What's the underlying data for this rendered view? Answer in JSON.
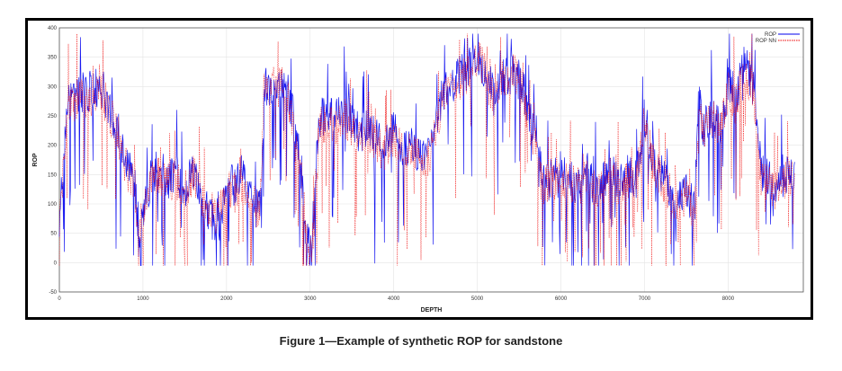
{
  "caption": "Figure 1—Example of synthetic ROP for sandstone",
  "chart_data": {
    "type": "line",
    "xlabel": "DEPTH",
    "ylabel": "ROP",
    "xlim": [
      0,
      8900
    ],
    "ylim": [
      -50,
      400
    ],
    "x_ticks": [
      0,
      1000,
      2000,
      3000,
      4000,
      5000,
      6000,
      7000,
      8000
    ],
    "y_ticks": [
      -50,
      0,
      50,
      100,
      150,
      200,
      250,
      300,
      350,
      400
    ],
    "grid": true,
    "legend_position": "top-right",
    "series": [
      {
        "name": "ROP",
        "color": "#0000ee",
        "profile": [
          [
            0,
            60
          ],
          [
            100,
            280
          ],
          [
            300,
            290
          ],
          [
            500,
            300
          ],
          [
            700,
            230
          ],
          [
            800,
            170
          ],
          [
            900,
            140
          ],
          [
            950,
            40
          ],
          [
            1000,
            80
          ],
          [
            1100,
            150
          ],
          [
            1200,
            160
          ],
          [
            1300,
            140
          ],
          [
            1400,
            150
          ],
          [
            1500,
            120
          ],
          [
            1600,
            160
          ],
          [
            1700,
            100
          ],
          [
            1800,
            80
          ],
          [
            1900,
            60
          ],
          [
            2000,
            140
          ],
          [
            2100,
            130
          ],
          [
            2200,
            160
          ],
          [
            2300,
            100
          ],
          [
            2400,
            90
          ],
          [
            2450,
            300
          ],
          [
            2550,
            300
          ],
          [
            2700,
            310
          ],
          [
            2800,
            250
          ],
          [
            2900,
            150
          ],
          [
            2950,
            50
          ],
          [
            3000,
            20
          ],
          [
            3050,
            100
          ],
          [
            3100,
            240
          ],
          [
            3200,
            260
          ],
          [
            3300,
            250
          ],
          [
            3400,
            260
          ],
          [
            3500,
            240
          ],
          [
            3600,
            220
          ],
          [
            3700,
            230
          ],
          [
            3800,
            210
          ],
          [
            3900,
            200
          ],
          [
            4000,
            230
          ],
          [
            4100,
            190
          ],
          [
            4200,
            200
          ],
          [
            4300,
            180
          ],
          [
            4400,
            170
          ],
          [
            4500,
            240
          ],
          [
            4600,
            290
          ],
          [
            4700,
            300
          ],
          [
            4800,
            320
          ],
          [
            4900,
            330
          ],
          [
            5000,
            350
          ],
          [
            5100,
            330
          ],
          [
            5200,
            280
          ],
          [
            5300,
            320
          ],
          [
            5400,
            320
          ],
          [
            5500,
            330
          ],
          [
            5600,
            260
          ],
          [
            5700,
            220
          ],
          [
            5800,
            130
          ],
          [
            5900,
            150
          ],
          [
            6000,
            140
          ],
          [
            6100,
            150
          ],
          [
            6200,
            130
          ],
          [
            6300,
            150
          ],
          [
            6400,
            130
          ],
          [
            6500,
            140
          ],
          [
            6600,
            150
          ],
          [
            6700,
            130
          ],
          [
            6800,
            150
          ],
          [
            6900,
            140
          ],
          [
            7000,
            250
          ],
          [
            7100,
            180
          ],
          [
            7200,
            150
          ],
          [
            7300,
            130
          ],
          [
            7400,
            100
          ],
          [
            7500,
            120
          ],
          [
            7600,
            90
          ],
          [
            7650,
            290
          ],
          [
            7700,
            220
          ],
          [
            7800,
            260
          ],
          [
            7900,
            230
          ],
          [
            8000,
            300
          ],
          [
            8100,
            290
          ],
          [
            8200,
            340
          ],
          [
            8300,
            300
          ],
          [
            8400,
            150
          ],
          [
            8500,
            140
          ],
          [
            8600,
            130
          ],
          [
            8700,
            150
          ],
          [
            8800,
            150
          ]
        ]
      },
      {
        "name": "ROP NN",
        "color": "#ee0000",
        "profile": [
          [
            0,
            70
          ],
          [
            100,
            270
          ],
          [
            300,
            280
          ],
          [
            500,
            290
          ],
          [
            700,
            220
          ],
          [
            800,
            160
          ],
          [
            900,
            140
          ],
          [
            950,
            50
          ],
          [
            1000,
            90
          ],
          [
            1100,
            140
          ],
          [
            1200,
            150
          ],
          [
            1300,
            140
          ],
          [
            1400,
            140
          ],
          [
            1500,
            120
          ],
          [
            1600,
            150
          ],
          [
            1700,
            110
          ],
          [
            1800,
            90
          ],
          [
            1900,
            80
          ],
          [
            2000,
            120
          ],
          [
            2100,
            120
          ],
          [
            2200,
            140
          ],
          [
            2300,
            100
          ],
          [
            2400,
            90
          ],
          [
            2450,
            300
          ],
          [
            2550,
            300
          ],
          [
            2700,
            300
          ],
          [
            2800,
            240
          ],
          [
            2900,
            150
          ],
          [
            2950,
            60
          ],
          [
            3000,
            0
          ],
          [
            3050,
            80
          ],
          [
            3100,
            230
          ],
          [
            3200,
            240
          ],
          [
            3300,
            230
          ],
          [
            3400,
            250
          ],
          [
            3500,
            230
          ],
          [
            3600,
            210
          ],
          [
            3700,
            220
          ],
          [
            3800,
            200
          ],
          [
            3900,
            190
          ],
          [
            4000,
            210
          ],
          [
            4100,
            190
          ],
          [
            4200,
            190
          ],
          [
            4300,
            180
          ],
          [
            4400,
            170
          ],
          [
            4500,
            220
          ],
          [
            4600,
            280
          ],
          [
            4700,
            290
          ],
          [
            4800,
            310
          ],
          [
            4900,
            320
          ],
          [
            5000,
            350
          ],
          [
            5100,
            320
          ],
          [
            5200,
            270
          ],
          [
            5300,
            320
          ],
          [
            5400,
            320
          ],
          [
            5500,
            320
          ],
          [
            5600,
            250
          ],
          [
            5700,
            200
          ],
          [
            5800,
            130
          ],
          [
            5900,
            140
          ],
          [
            6000,
            130
          ],
          [
            6100,
            140
          ],
          [
            6200,
            130
          ],
          [
            6300,
            140
          ],
          [
            6400,
            130
          ],
          [
            6500,
            130
          ],
          [
            6600,
            140
          ],
          [
            6700,
            130
          ],
          [
            6800,
            140
          ],
          [
            6900,
            130
          ],
          [
            7000,
            240
          ],
          [
            7100,
            170
          ],
          [
            7200,
            140
          ],
          [
            7300,
            120
          ],
          [
            7400,
            100
          ],
          [
            7500,
            110
          ],
          [
            7600,
            90
          ],
          [
            7650,
            280
          ],
          [
            7700,
            210
          ],
          [
            7800,
            250
          ],
          [
            7900,
            220
          ],
          [
            8000,
            290
          ],
          [
            8100,
            280
          ],
          [
            8200,
            330
          ],
          [
            8300,
            290
          ],
          [
            8400,
            140
          ],
          [
            8500,
            130
          ],
          [
            8600,
            120
          ],
          [
            8700,
            140
          ],
          [
            8800,
            140
          ]
        ]
      }
    ]
  }
}
